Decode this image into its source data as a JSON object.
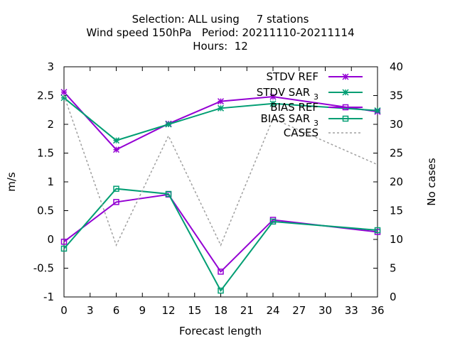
{
  "chart_data": {
    "type": "line",
    "title": [
      "Selection: ALL using     7 stations",
      "Wind speed 150hPa   Period: 20211110-20211114",
      "Hours:  12"
    ],
    "xlabel": "Forecast length",
    "ylabel": "m/s",
    "y2label": "No cases",
    "xlim": [
      0,
      36
    ],
    "ylim": [
      -1,
      3
    ],
    "y2lim": [
      0,
      40
    ],
    "xticks": [
      "0",
      "3",
      "6",
      "9",
      "12",
      "15",
      "18",
      "21",
      "24",
      "27",
      "30",
      "33",
      "36"
    ],
    "yticks": [
      "-1",
      "-0.5",
      "0",
      "0.5",
      "1",
      "1.5",
      "2",
      "2.5",
      "3"
    ],
    "y2ticks": [
      "0",
      "5",
      "10",
      "15",
      "20",
      "25",
      "30",
      "35",
      "40"
    ],
    "grid": false,
    "legend_position": "top-right",
    "x": [
      0,
      6,
      12,
      18,
      24,
      36
    ],
    "series": [
      {
        "name": "STDV REF",
        "axis": "y",
        "color": "#9400d3",
        "marker": "star",
        "values": [
          2.56,
          1.56,
          2.01,
          2.4,
          2.48,
          2.22
        ]
      },
      {
        "name": "STDV SAR",
        "name_sub": "3",
        "axis": "y",
        "color": "#009e73",
        "marker": "star",
        "values": [
          2.46,
          1.72,
          2.0,
          2.28,
          2.36,
          2.24
        ]
      },
      {
        "name": "BIAS REF",
        "axis": "y",
        "color": "#9400d3",
        "marker": "square",
        "values": [
          -0.04,
          0.65,
          0.78,
          -0.56,
          0.34,
          0.13
        ]
      },
      {
        "name": "BIAS SAR",
        "name_sub": "3",
        "axis": "y",
        "color": "#009e73",
        "marker": "square",
        "values": [
          -0.16,
          0.88,
          0.79,
          -0.89,
          0.31,
          0.16
        ]
      },
      {
        "name": "CASES",
        "axis": "y2",
        "color": "#a0a0a0",
        "marker": "none",
        "dashed": true,
        "values": [
          35,
          9,
          28,
          9,
          31,
          23
        ]
      }
    ]
  }
}
